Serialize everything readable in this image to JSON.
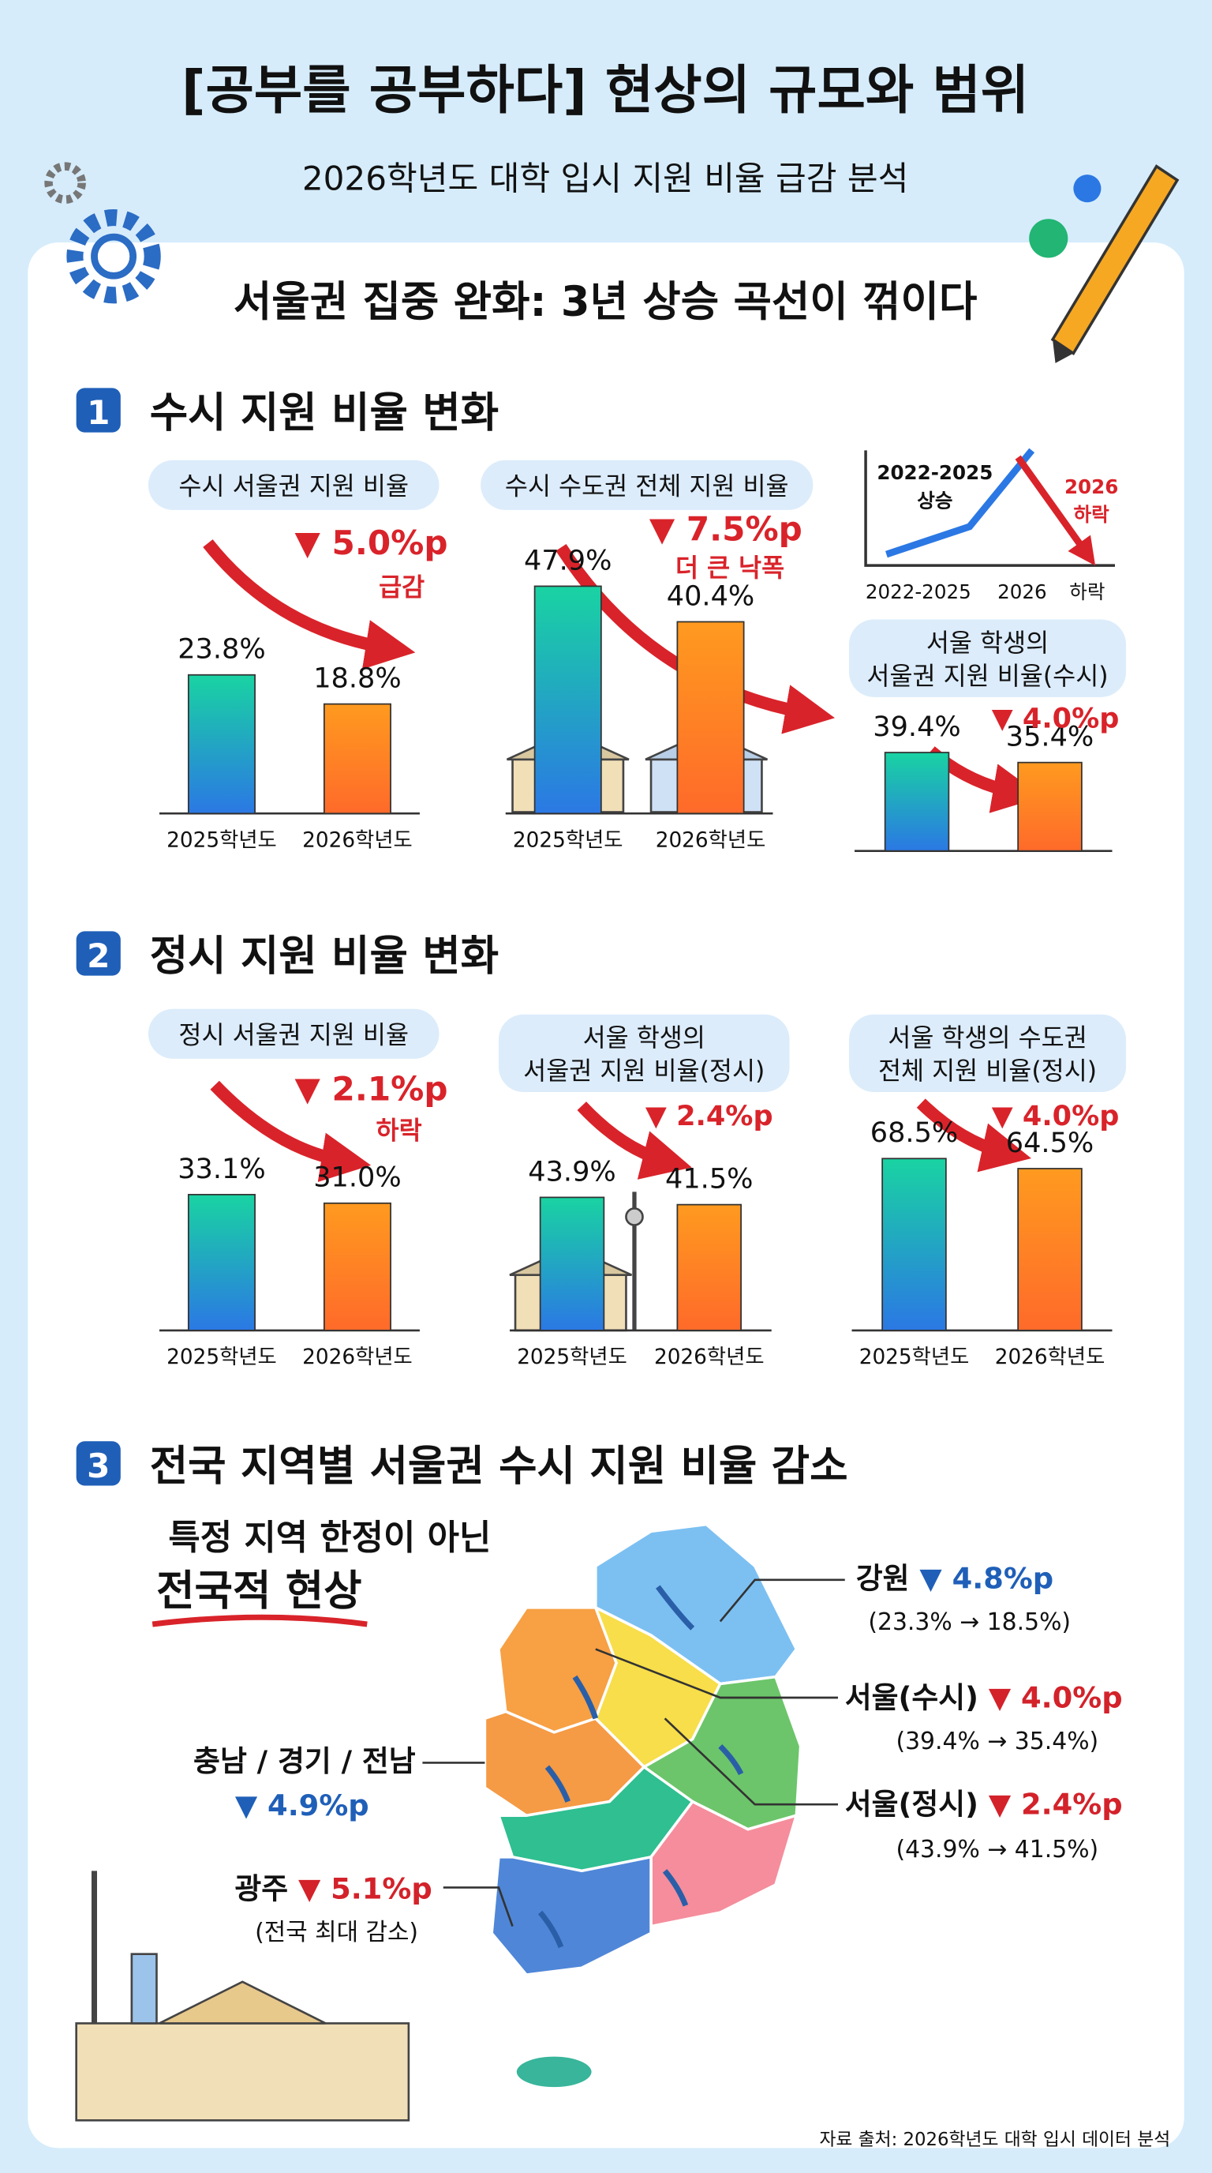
{
  "header": {
    "title": "[공부를 공부하다] 현상의 규모와 범위",
    "subtitle": "2026학년도 대학 입시 지원 비율 급감 분석",
    "headline": "서울권 집중 완화: 3년 상승 곡선이 꺾이다"
  },
  "sections": [
    {
      "number": "1",
      "title": "수시 지원 비율 변화"
    },
    {
      "number": "2",
      "title": "정시 지원 비율 변화"
    },
    {
      "number": "3",
      "title": "전국 지역별 서울권 수시 지원 비율 감소"
    }
  ],
  "trend": {
    "rise_label": [
      "2022-2025",
      "상승"
    ],
    "fall_label": [
      "2026",
      "하락"
    ],
    "x_labels": [
      "2022-2025",
      "2026",
      "하락"
    ]
  },
  "chart_data": [
    {
      "type": "bar",
      "title": [
        "수시 서울권 지원 비율"
      ],
      "categories": [
        "2025학년도",
        "2026학년도"
      ],
      "values": [
        23.8,
        18.8
      ],
      "value_labels": [
        "23.8%",
        "18.8%"
      ],
      "colors": [
        [
          "#19d3a2",
          "#2b78e4"
        ],
        [
          "#ff9a1f",
          "#ff6a2a"
        ]
      ],
      "annotation": "▼ 5.0%p",
      "annotation_note": "급감"
    },
    {
      "type": "bar",
      "title": [
        "수시 수도권 전체 지원 비율"
      ],
      "categories": [
        "2025학년도",
        "2026학년도"
      ],
      "values": [
        47.9,
        40.4
      ],
      "value_labels": [
        "47.9%",
        "40.4%"
      ],
      "colors": [
        [
          "#19d3a2",
          "#2b78e4"
        ],
        [
          "#ff9a1f",
          "#ff6a2a"
        ]
      ],
      "annotation": "▼ 7.5%p",
      "annotation_note": "더 큰 낙폭"
    },
    {
      "type": "bar",
      "title": [
        "서울 학생의",
        "서울권 지원 비율(수시)"
      ],
      "values": [
        39.4,
        35.4
      ],
      "value_labels": [
        "39.4%",
        "35.4%"
      ],
      "colors": [
        [
          "#19d3a2",
          "#2b78e4"
        ],
        [
          "#ff9a1f",
          "#ff6a2a"
        ]
      ],
      "annotation": "▼ 4.0%p"
    },
    {
      "type": "bar",
      "title": [
        "정시 서울권 지원 비율"
      ],
      "categories": [
        "2025학년도",
        "2026학년도"
      ],
      "values": [
        33.1,
        31.0
      ],
      "value_labels": [
        "33.1%",
        "31.0%"
      ],
      "colors": [
        [
          "#19d3a2",
          "#2b78e4"
        ],
        [
          "#ff9a1f",
          "#ff6a2a"
        ]
      ],
      "annotation": "▼ 2.1%p",
      "annotation_note": "하락"
    },
    {
      "type": "bar",
      "title": [
        "서울 학생의",
        "서울권 지원 비율(정시)"
      ],
      "categories": [
        "2025학년도",
        "2026학년도"
      ],
      "values": [
        43.9,
        41.5
      ],
      "value_labels": [
        "43.9%",
        "41.5%"
      ],
      "colors": [
        [
          "#19d3a2",
          "#2b78e4"
        ],
        [
          "#ff9a1f",
          "#ff6a2a"
        ]
      ],
      "annotation": "▼ 2.4%p"
    },
    {
      "type": "bar",
      "title": [
        "서울 학생의 수도권",
        "전체 지원 비율(정시)"
      ],
      "categories": [
        "2025학년도",
        "2026학년도"
      ],
      "values": [
        68.5,
        64.5
      ],
      "value_labels": [
        "68.5%",
        "64.5%"
      ],
      "colors": [
        [
          "#19d3a2",
          "#2b78e4"
        ],
        [
          "#ff9a1f",
          "#ff6a2a"
        ]
      ],
      "annotation": "▼ 4.0%p"
    }
  ],
  "map": {
    "headline": [
      "특정 지역 한정이 아닌",
      "전국적 현상"
    ],
    "regions": [
      {
        "name": "강원",
        "change": "▼ 4.8%p",
        "detail": "(23.3% → 18.5%)",
        "color": "#1f5fb8"
      },
      {
        "name": "서울(수시)",
        "change": "▼ 4.0%p",
        "detail": "(39.4% → 35.4%)",
        "color": "#d3222a"
      },
      {
        "name": "서울(정시)",
        "change": "▼ 2.4%p",
        "detail": "(43.9% → 41.5%)",
        "color": "#d3222a"
      },
      {
        "name": "충남 / 경기 / 전남",
        "change": "▼ 4.9%p",
        "color": "#1f5fb8"
      },
      {
        "name": "광주",
        "change": "▼ 5.1%p",
        "detail": "(전국 최대 감소)",
        "color": "#d3222a"
      }
    ]
  },
  "footer": "자료 출처: 2026학년도 대학 입시 데이터 분석"
}
